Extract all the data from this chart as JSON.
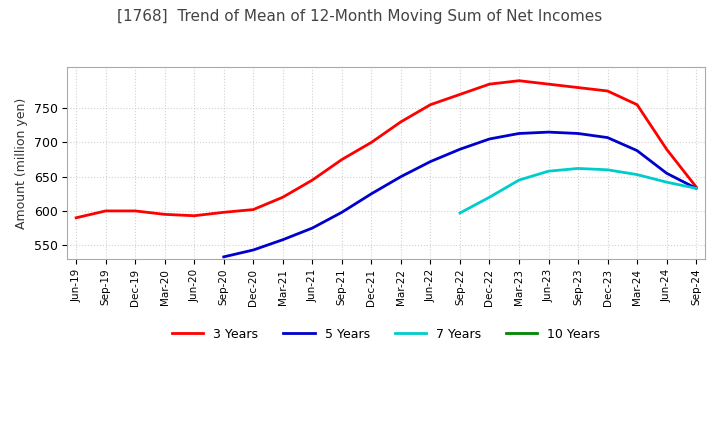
{
  "title": "[1768]  Trend of Mean of 12-Month Moving Sum of Net Incomes",
  "ylabel": "Amount (million yen)",
  "background_color": "#ffffff",
  "grid_color": "#cccccc",
  "x_labels": [
    "Jun-19",
    "Sep-19",
    "Dec-19",
    "Mar-20",
    "Jun-20",
    "Sep-20",
    "Dec-20",
    "Mar-21",
    "Jun-21",
    "Sep-21",
    "Dec-21",
    "Mar-22",
    "Jun-22",
    "Sep-22",
    "Dec-22",
    "Mar-23",
    "Jun-23",
    "Sep-23",
    "Dec-23",
    "Mar-24",
    "Jun-24",
    "Sep-24"
  ],
  "ylim": [
    530,
    810
  ],
  "yticks": [
    550,
    600,
    650,
    700,
    750
  ],
  "series": {
    "3 Years": {
      "color": "#ff0000",
      "data": [
        590,
        600,
        600,
        595,
        593,
        598,
        602,
        620,
        645,
        675,
        700,
        730,
        755,
        770,
        785,
        790,
        785,
        780,
        775,
        755,
        690,
        635
      ]
    },
    "5 Years": {
      "color": "#0000cc",
      "data": [
        null,
        null,
        null,
        null,
        null,
        533,
        543,
        558,
        575,
        598,
        625,
        650,
        672,
        690,
        705,
        713,
        715,
        713,
        707,
        688,
        655,
        633
      ]
    },
    "7 Years": {
      "color": "#00cccc",
      "data": [
        null,
        null,
        null,
        null,
        null,
        null,
        null,
        null,
        null,
        null,
        null,
        null,
        null,
        597,
        620,
        645,
        658,
        662,
        660,
        653,
        642,
        633
      ]
    },
    "10 Years": {
      "color": "#008800",
      "data": [
        null,
        null,
        null,
        null,
        null,
        null,
        null,
        null,
        null,
        null,
        null,
        null,
        null,
        null,
        null,
        null,
        null,
        null,
        null,
        null,
        null,
        null
      ]
    }
  },
  "legend": {
    "3 Years": "#ff0000",
    "5 Years": "#0000cc",
    "7 Years": "#00cccc",
    "10 Years": "#008800"
  }
}
